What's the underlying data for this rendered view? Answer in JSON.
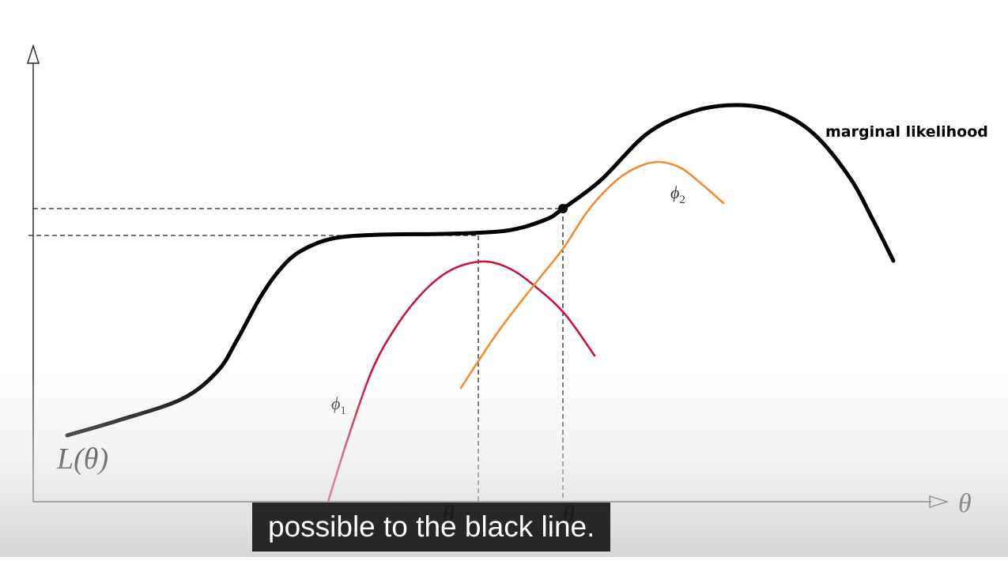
{
  "video_frame": {
    "caption": "possible to the black line.",
    "background_text": "",
    "colors": {
      "marginal": "#000000",
      "phi1": "#c8143c",
      "phi2": "#f08c32",
      "caption_bg": "#080808",
      "caption_fg": "#ffffff"
    }
  },
  "chart_data": {
    "type": "line",
    "title": "",
    "xlabel": "θ",
    "ylabel": "",
    "grid": false,
    "series": [
      {
        "name": "marginal likelihood",
        "label": "marginal likelihood",
        "color": "#000000",
        "points": [
          [
            85,
            551
          ],
          [
            150,
            532
          ],
          [
            230,
            505
          ],
          [
            275,
            470
          ],
          [
            300,
            430
          ],
          [
            330,
            375
          ],
          [
            355,
            340
          ],
          [
            380,
            318
          ],
          [
            420,
            302
          ],
          [
            480,
            297
          ],
          [
            560,
            296
          ],
          [
            640,
            292
          ],
          [
            690,
            278
          ],
          [
            712,
            264
          ],
          [
            760,
            228
          ],
          [
            820,
            168
          ],
          [
            880,
            140
          ],
          [
            935,
            133
          ],
          [
            985,
            142
          ],
          [
            1030,
            170
          ],
          [
            1075,
            225
          ],
          [
            1105,
            280
          ],
          [
            1130,
            330
          ]
        ]
      },
      {
        "name": "φ1",
        "label": "ϕ",
        "label_sub": "1",
        "color": "#c8143c",
        "points": [
          [
            415,
            635
          ],
          [
            440,
            555
          ],
          [
            470,
            470
          ],
          [
            500,
            415
          ],
          [
            535,
            370
          ],
          [
            570,
            342
          ],
          [
            610,
            331
          ],
          [
            645,
            340
          ],
          [
            680,
            365
          ],
          [
            715,
            398
          ],
          [
            752,
            450
          ]
        ]
      },
      {
        "name": "φ2",
        "label": "ϕ",
        "label_sub": "2",
        "color": "#f08c32",
        "points": [
          [
            583,
            491
          ],
          [
            630,
            420
          ],
          [
            680,
            355
          ],
          [
            712,
            315
          ],
          [
            745,
            265
          ],
          [
            780,
            228
          ],
          [
            810,
            210
          ],
          [
            835,
            205
          ],
          [
            862,
            213
          ],
          [
            890,
            235
          ],
          [
            915,
            257
          ]
        ]
      }
    ],
    "annotations": [
      {
        "text": "L(θ)"
      },
      {
        "text": "θ"
      },
      {
        "text": "θ"
      }
    ]
  }
}
